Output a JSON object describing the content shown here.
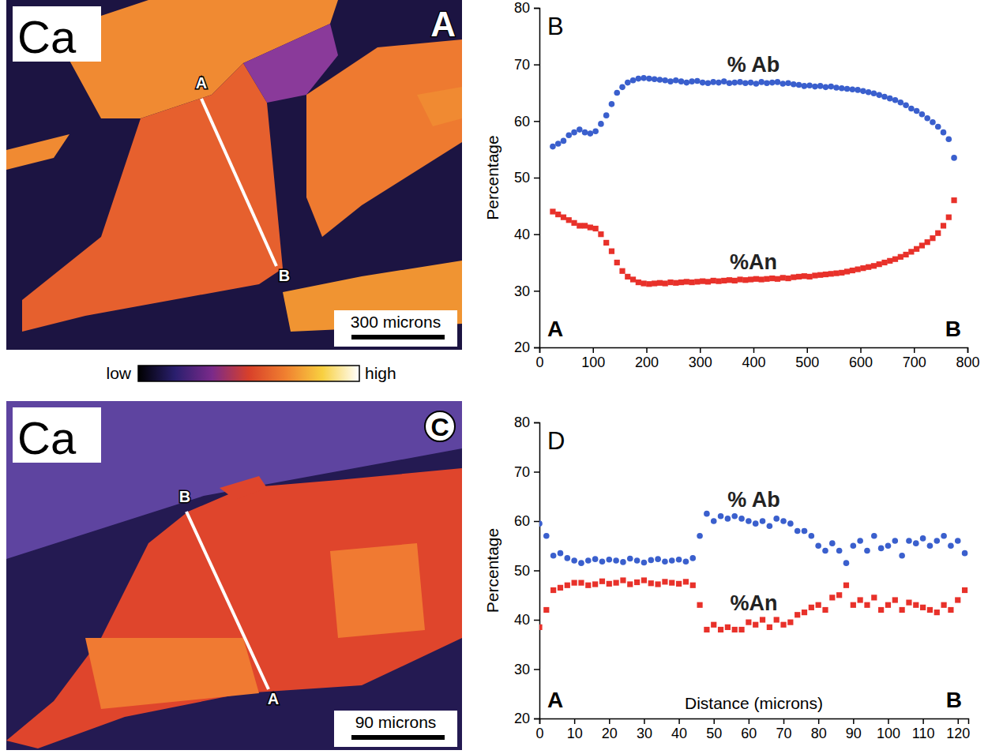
{
  "chart_data": [
    {
      "type": "map",
      "panel": "A",
      "title": "Ca",
      "transect": [
        "A",
        "B"
      ],
      "scale_bar": "300 microns",
      "colorbar": [
        "low",
        "high"
      ]
    },
    {
      "type": "scatter",
      "panel": "B",
      "x": [
        25,
        35,
        45,
        55,
        65,
        75,
        85,
        95,
        105,
        115,
        125,
        135,
        145,
        155,
        165,
        175,
        185,
        195,
        205,
        215,
        225,
        235,
        245,
        255,
        265,
        275,
        285,
        295,
        305,
        315,
        325,
        335,
        345,
        355,
        365,
        375,
        385,
        395,
        405,
        415,
        425,
        435,
        445,
        455,
        465,
        475,
        485,
        495,
        505,
        515,
        525,
        535,
        545,
        555,
        565,
        575,
        585,
        595,
        605,
        615,
        625,
        635,
        645,
        655,
        665,
        675,
        685,
        695,
        705,
        715,
        725,
        735,
        745,
        755,
        765,
        775
      ],
      "series": [
        {
          "name": "% Ab",
          "color": "#3a5fcd",
          "marker": "circle",
          "values": [
            55.5,
            56,
            56.5,
            57.5,
            58,
            58.5,
            58,
            57.8,
            58.2,
            59.5,
            61,
            63,
            65,
            66,
            66.8,
            67.2,
            67.5,
            67.6,
            67.5,
            67.4,
            67.3,
            67.2,
            67,
            67.2,
            67,
            66.8,
            67,
            67.1,
            66.8,
            66.7,
            66.9,
            66.8,
            67,
            66.7,
            66.8,
            66.9,
            66.7,
            66.8,
            66.6,
            66.9,
            66.7,
            66.8,
            66.9,
            66.6,
            66.7,
            66.5,
            66.4,
            66.2,
            66.3,
            66.1,
            66.2,
            66,
            66.1,
            65.9,
            65.8,
            65.7,
            65.6,
            65.5,
            65.3,
            65.1,
            64.9,
            64.6,
            64.3,
            64,
            63.7,
            63.3,
            62.8,
            62.2,
            61.8,
            61.2,
            60.5,
            59.8,
            59,
            58,
            56.8,
            53.5
          ]
        },
        {
          "name": "%An",
          "color": "#e8312a",
          "marker": "square",
          "values": [
            44,
            43.5,
            43,
            42.5,
            42,
            41.5,
            41.5,
            41.2,
            41,
            40,
            38.5,
            37,
            35,
            33.5,
            32.5,
            32,
            31.5,
            31.3,
            31.2,
            31.3,
            31.4,
            31.3,
            31.5,
            31.4,
            31.5,
            31.6,
            31.5,
            31.6,
            31.7,
            31.6,
            31.8,
            31.7,
            31.8,
            31.9,
            31.8,
            32,
            31.9,
            32,
            32.1,
            32,
            32.1,
            32.2,
            32.1,
            32.3,
            32.2,
            32.4,
            32.5,
            32.6,
            32.5,
            32.7,
            32.8,
            32.9,
            33,
            33.1,
            33.2,
            33.4,
            33.6,
            33.8,
            34,
            34.2,
            34.4,
            34.7,
            35,
            35.3,
            35.6,
            36,
            36.4,
            36.9,
            37.4,
            38,
            38.6,
            39.3,
            40.2,
            41.5,
            43,
            46
          ]
        }
      ],
      "xlim": [
        0,
        800
      ],
      "xticks": [
        0,
        100,
        200,
        300,
        400,
        500,
        600,
        700,
        800
      ],
      "ylim": [
        20,
        80
      ],
      "yticks": [
        20,
        30,
        40,
        50,
        60,
        70,
        80
      ],
      "y_label": "Percentage",
      "end_labels": [
        "A",
        "B"
      ]
    },
    {
      "type": "map",
      "panel": "C",
      "title": "Ca",
      "transect": [
        "A",
        "B"
      ],
      "scale_bar": "90 microns"
    },
    {
      "type": "scatter",
      "panel": "D",
      "x": [
        0,
        2,
        4,
        6,
        8,
        10,
        12,
        14,
        16,
        18,
        20,
        22,
        24,
        26,
        28,
        30,
        32,
        34,
        36,
        38,
        40,
        42,
        44,
        46,
        48,
        50,
        52,
        54,
        56,
        58,
        60,
        62,
        64,
        66,
        68,
        70,
        72,
        74,
        76,
        78,
        80,
        82,
        84,
        86,
        88,
        90,
        92,
        94,
        96,
        98,
        100,
        102,
        104,
        106,
        108,
        110,
        112,
        114,
        116,
        118,
        120,
        122
      ],
      "series": [
        {
          "name": "% Ab",
          "color": "#3a5fcd",
          "marker": "circle",
          "values": [
            59.5,
            57,
            53,
            53.5,
            52.5,
            52,
            51.5,
            52,
            52.3,
            51.8,
            52.2,
            52,
            51.7,
            52.4,
            52,
            51.6,
            52.1,
            52.3,
            51.8,
            52,
            52.2,
            51.8,
            52.5,
            57,
            61.5,
            60,
            61,
            60.5,
            61,
            60.5,
            60,
            59.5,
            60,
            59,
            60.5,
            60,
            59.5,
            58,
            58,
            57,
            55,
            54,
            55.5,
            54,
            51.5,
            55,
            56,
            54,
            57,
            54.5,
            55,
            56,
            53,
            56,
            55.5,
            56.5,
            55,
            56,
            57,
            55,
            56,
            53.5
          ]
        },
        {
          "name": "%An",
          "color": "#e8312a",
          "marker": "square",
          "values": [
            38.5,
            42,
            46,
            46.5,
            47,
            47.5,
            47.5,
            47,
            47.2,
            47.8,
            47.3,
            47.5,
            48,
            47.2,
            47.6,
            48,
            47.4,
            47.2,
            47.7,
            47.5,
            47.3,
            47.7,
            47,
            43,
            38,
            39,
            38,
            38.5,
            38,
            38,
            39.5,
            39,
            40,
            38.5,
            40,
            39,
            39.5,
            41,
            41.5,
            42.5,
            43,
            42,
            44.5,
            45,
            47,
            43,
            44,
            43,
            44.5,
            42,
            43,
            44,
            42,
            43.5,
            43,
            42.5,
            42,
            41.5,
            43,
            42,
            44,
            46
          ]
        }
      ],
      "xlim": [
        0,
        123
      ],
      "xticks": [
        0,
        10,
        20,
        30,
        40,
        50,
        60,
        70,
        80,
        90,
        100,
        110,
        120
      ],
      "ylim": [
        20,
        80
      ],
      "yticks": [
        20,
        30,
        40,
        50,
        60,
        70,
        80
      ],
      "y_label": "Percentage",
      "x_label": "Distance (microns)",
      "end_labels": [
        "A",
        "B"
      ]
    }
  ]
}
